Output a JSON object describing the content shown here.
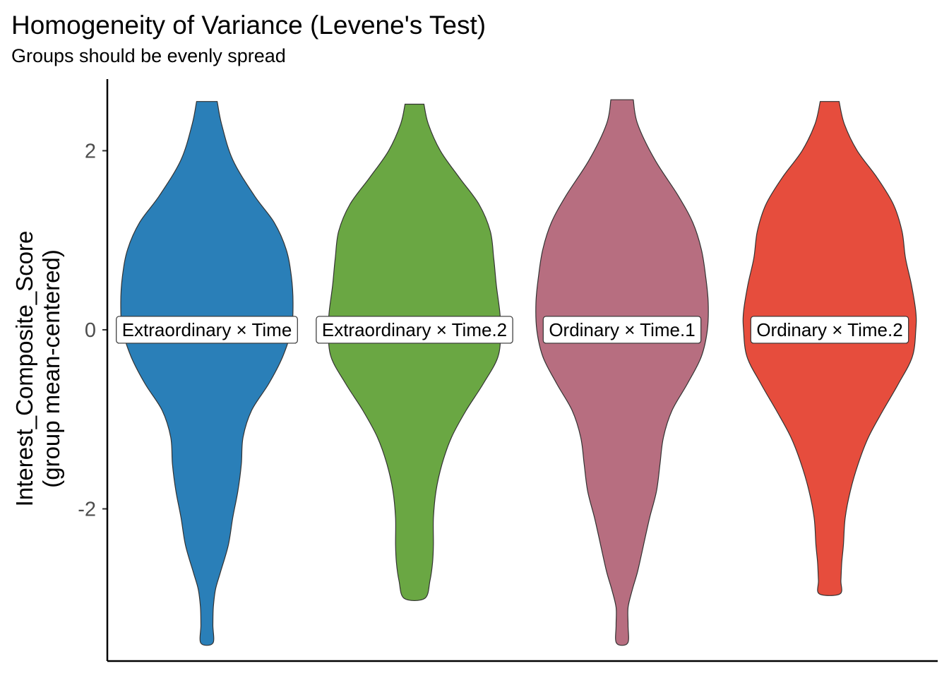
{
  "chart_data": {
    "type": "violin",
    "title": "Homogeneity of Variance (Levene's Test)",
    "subtitle": "Groups should be evenly spread",
    "xlabel": "",
    "ylabel_lines": [
      "Interest_Composite_Score",
      "(group mean-centered)"
    ],
    "ylim": [
      -3.7,
      2.8
    ],
    "yticks": [
      {
        "value": 2,
        "label": "2"
      },
      {
        "value": 0,
        "label": "0"
      },
      {
        "value": -2,
        "label": "-2"
      }
    ],
    "grid": false,
    "legend": "none",
    "groups": [
      {
        "label": "Extraordinary × Time",
        "color": "#2a7fb8",
        "min": -3.5,
        "max": 2.55,
        "density": [
          [
            2.55,
            0.12
          ],
          [
            2.3,
            0.17
          ],
          [
            1.9,
            0.3
          ],
          [
            1.5,
            0.55
          ],
          [
            1.2,
            0.78
          ],
          [
            0.9,
            0.92
          ],
          [
            0.6,
            0.98
          ],
          [
            0.3,
            1.0
          ],
          [
            0.0,
            0.98
          ],
          [
            -0.3,
            0.88
          ],
          [
            -0.6,
            0.72
          ],
          [
            -0.9,
            0.52
          ],
          [
            -1.2,
            0.42
          ],
          [
            -1.5,
            0.4
          ],
          [
            -1.8,
            0.36
          ],
          [
            -2.1,
            0.3
          ],
          [
            -2.4,
            0.25
          ],
          [
            -2.7,
            0.16
          ],
          [
            -2.9,
            0.1
          ],
          [
            -3.1,
            0.075
          ],
          [
            -3.3,
            0.07
          ],
          [
            -3.5,
            0.07
          ]
        ]
      },
      {
        "label": "Extraordinary × Time.2",
        "color": "#6aa743",
        "min": -3.0,
        "max": 2.52,
        "density": [
          [
            2.52,
            0.11
          ],
          [
            2.3,
            0.16
          ],
          [
            2.0,
            0.3
          ],
          [
            1.7,
            0.52
          ],
          [
            1.4,
            0.75
          ],
          [
            1.1,
            0.88
          ],
          [
            0.8,
            0.92
          ],
          [
            0.5,
            0.95
          ],
          [
            0.2,
            0.99
          ],
          [
            0.0,
            1.0
          ],
          [
            -0.3,
            0.97
          ],
          [
            -0.6,
            0.8
          ],
          [
            -0.9,
            0.6
          ],
          [
            -1.2,
            0.43
          ],
          [
            -1.5,
            0.32
          ],
          [
            -1.8,
            0.25
          ],
          [
            -2.1,
            0.22
          ],
          [
            -2.4,
            0.22
          ],
          [
            -2.6,
            0.21
          ],
          [
            -2.8,
            0.18
          ],
          [
            -3.0,
            0.12
          ]
        ]
      },
      {
        "label": "Ordinary × Time.1",
        "color": "#b76e80",
        "min": -3.5,
        "max": 2.57,
        "density": [
          [
            2.57,
            0.13
          ],
          [
            2.3,
            0.18
          ],
          [
            1.9,
            0.38
          ],
          [
            1.5,
            0.65
          ],
          [
            1.2,
            0.82
          ],
          [
            0.9,
            0.92
          ],
          [
            0.6,
            0.97
          ],
          [
            0.3,
            1.0
          ],
          [
            0.0,
            0.99
          ],
          [
            -0.3,
            0.92
          ],
          [
            -0.6,
            0.76
          ],
          [
            -0.9,
            0.58
          ],
          [
            -1.2,
            0.48
          ],
          [
            -1.5,
            0.44
          ],
          [
            -1.8,
            0.4
          ],
          [
            -2.1,
            0.32
          ],
          [
            -2.4,
            0.25
          ],
          [
            -2.7,
            0.18
          ],
          [
            -2.9,
            0.12
          ],
          [
            -3.1,
            0.07
          ],
          [
            -3.3,
            0.07
          ],
          [
            -3.5,
            0.065
          ]
        ]
      },
      {
        "label": "Ordinary × Time.2",
        "color": "#e64d3d",
        "min": -2.95,
        "max": 2.55,
        "density": [
          [
            2.55,
            0.11
          ],
          [
            2.3,
            0.17
          ],
          [
            2.0,
            0.32
          ],
          [
            1.7,
            0.55
          ],
          [
            1.4,
            0.74
          ],
          [
            1.1,
            0.84
          ],
          [
            0.8,
            0.88
          ],
          [
            0.5,
            0.95
          ],
          [
            0.2,
            1.0
          ],
          [
            0.0,
            1.0
          ],
          [
            -0.3,
            0.96
          ],
          [
            -0.6,
            0.8
          ],
          [
            -0.9,
            0.62
          ],
          [
            -1.2,
            0.45
          ],
          [
            -1.5,
            0.33
          ],
          [
            -1.8,
            0.24
          ],
          [
            -2.1,
            0.18
          ],
          [
            -2.4,
            0.16
          ],
          [
            -2.6,
            0.14
          ],
          [
            -2.8,
            0.13
          ],
          [
            -2.95,
            0.12
          ]
        ]
      }
    ]
  }
}
